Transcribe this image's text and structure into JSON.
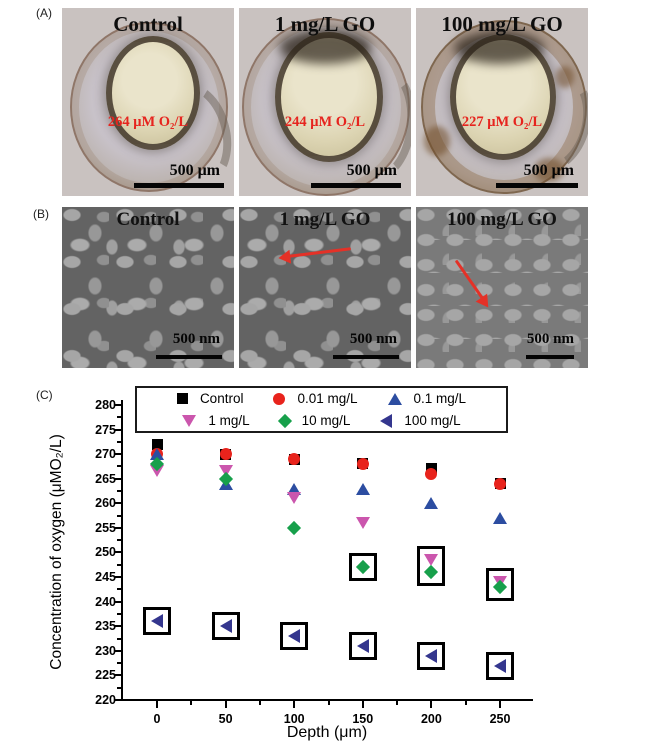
{
  "figure": {
    "panel_a": {
      "label": "(A)",
      "images": [
        {
          "title": "Control",
          "oxygen": "264 μM O₂/L",
          "scale": "500 μm"
        },
        {
          "title": "1 mg/L GO",
          "oxygen": "244 μM O₂/L",
          "scale": "500 μm"
        },
        {
          "title": "100 mg/L GO",
          "oxygen": "227 μM O₂/L",
          "scale": "500 μm"
        }
      ]
    },
    "panel_b": {
      "label": "(B)",
      "images": [
        {
          "title": "Control",
          "scale": "500 nm"
        },
        {
          "title": "1 mg/L GO",
          "scale": "500 nm"
        },
        {
          "title": "100 mg/L GO",
          "scale": "500 nm"
        }
      ]
    },
    "panel_c": {
      "label": "(C)"
    }
  },
  "chart_data": {
    "type": "scatter",
    "title": "",
    "xlabel": "Depth (μm)",
    "ylabel": "Concentration of oxygen (μMO₂/L)",
    "xlim": [
      -25,
      273
    ],
    "ylim": [
      220,
      280
    ],
    "grid": false,
    "legend_position": "top-center",
    "x": [
      0,
      50,
      100,
      150,
      200,
      250
    ],
    "xticks": [
      0,
      50,
      100,
      150,
      200,
      250
    ],
    "yticks": [
      280,
      275,
      270,
      265,
      260,
      255,
      250,
      245,
      240,
      235,
      230,
      225,
      220
    ],
    "xminor": [
      25,
      75,
      125,
      175,
      225
    ],
    "yminor": [
      222.5,
      227.5,
      232.5,
      237.5,
      242.5,
      247.5,
      252.5,
      257.5,
      262.5,
      267.5,
      272.5,
      277.5
    ],
    "series": [
      {
        "name": "Control",
        "marker": "square",
        "color": "#000000",
        "values": [
          272,
          270,
          269,
          268,
          267,
          264
        ]
      },
      {
        "name": "0.01 mg/L",
        "marker": "circle",
        "color": "#e8231c",
        "values": [
          270,
          270,
          269,
          268,
          266,
          264
        ]
      },
      {
        "name": "0.1 mg/L",
        "marker": "triangle-up",
        "color": "#2c4da1",
        "values": [
          270,
          264,
          263,
          263,
          260,
          257
        ]
      },
      {
        "name": "1 mg/L",
        "marker": "triangle-down",
        "color": "#cb56ad",
        "values": [
          266.5,
          266.5,
          261,
          256,
          248.5,
          244
        ]
      },
      {
        "name": "10 mg/L",
        "marker": "diamond",
        "color": "#17a04b",
        "values": [
          268,
          265,
          255,
          247,
          246,
          243
        ]
      },
      {
        "name": "100 mg/L",
        "marker": "triangle-left",
        "color": "#34368e",
        "values": [
          236,
          235,
          233,
          231,
          229,
          227
        ]
      }
    ],
    "legend_rows": [
      [
        "Control",
        "0.01 mg/L",
        "0.1 mg/L"
      ],
      [
        "1 mg/L",
        "10 mg/L",
        "100 mg/L"
      ]
    ],
    "highlight_boxes": [
      {
        "depth": 0,
        "v_top": 236,
        "v_bottom": 236
      },
      {
        "depth": 50,
        "v_top": 235,
        "v_bottom": 235
      },
      {
        "depth": 100,
        "v_top": 233,
        "v_bottom": 233
      },
      {
        "depth": 150,
        "v_top": 231,
        "v_bottom": 231
      },
      {
        "depth": 200,
        "v_top": 229,
        "v_bottom": 229
      },
      {
        "depth": 250,
        "v_top": 227,
        "v_bottom": 227
      },
      {
        "depth": 150,
        "v_top": 247,
        "v_bottom": 247
      },
      {
        "depth": 200,
        "v_top": 248.5,
        "v_bottom": 246
      },
      {
        "depth": 250,
        "v_top": 244,
        "v_bottom": 243
      }
    ]
  }
}
